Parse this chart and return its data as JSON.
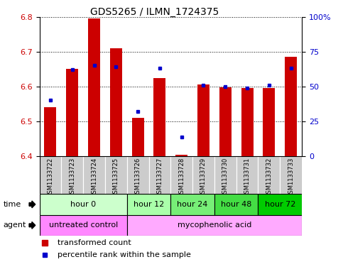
{
  "title": "GDS5265 / ILMN_1724375",
  "samples": [
    "GSM1133722",
    "GSM1133723",
    "GSM1133724",
    "GSM1133725",
    "GSM1133726",
    "GSM1133727",
    "GSM1133728",
    "GSM1133729",
    "GSM1133730",
    "GSM1133731",
    "GSM1133732",
    "GSM1133733"
  ],
  "transformed_count": [
    6.54,
    6.65,
    6.795,
    6.71,
    6.51,
    6.625,
    6.405,
    6.605,
    6.598,
    6.595,
    6.595,
    6.685
  ],
  "percentile_rank": [
    40,
    62,
    65,
    64,
    32,
    63,
    14,
    51,
    50,
    49,
    51,
    63
  ],
  "ylim_left": [
    6.4,
    6.8
  ],
  "ylim_right": [
    0,
    100
  ],
  "yticks_left": [
    6.4,
    6.5,
    6.6,
    6.7,
    6.8
  ],
  "yticks_right": [
    0,
    25,
    50,
    75,
    100
  ],
  "ytick_labels_right": [
    "0",
    "25",
    "50",
    "75",
    "100%"
  ],
  "bar_color": "#cc0000",
  "dot_color": "#0000cc",
  "bar_bottom": 6.4,
  "time_groups": [
    {
      "label": "hour 0",
      "start": 0,
      "end": 4,
      "color": "#ccffcc"
    },
    {
      "label": "hour 12",
      "start": 4,
      "end": 6,
      "color": "#aaffaa"
    },
    {
      "label": "hour 24",
      "start": 6,
      "end": 8,
      "color": "#77ee77"
    },
    {
      "label": "hour 48",
      "start": 8,
      "end": 10,
      "color": "#44dd44"
    },
    {
      "label": "hour 72",
      "start": 10,
      "end": 12,
      "color": "#00cc00"
    }
  ],
  "agent_groups": [
    {
      "label": "untreated control",
      "start": 0,
      "end": 4,
      "color": "#ff88ff"
    },
    {
      "label": "mycophenolic acid",
      "start": 4,
      "end": 12,
      "color": "#ffaaff"
    }
  ],
  "legend_bar_label": "transformed count",
  "legend_dot_label": "percentile rank within the sample",
  "bg_color": "#ffffff",
  "sample_bg_color": "#cccccc",
  "border_color": "#000000"
}
